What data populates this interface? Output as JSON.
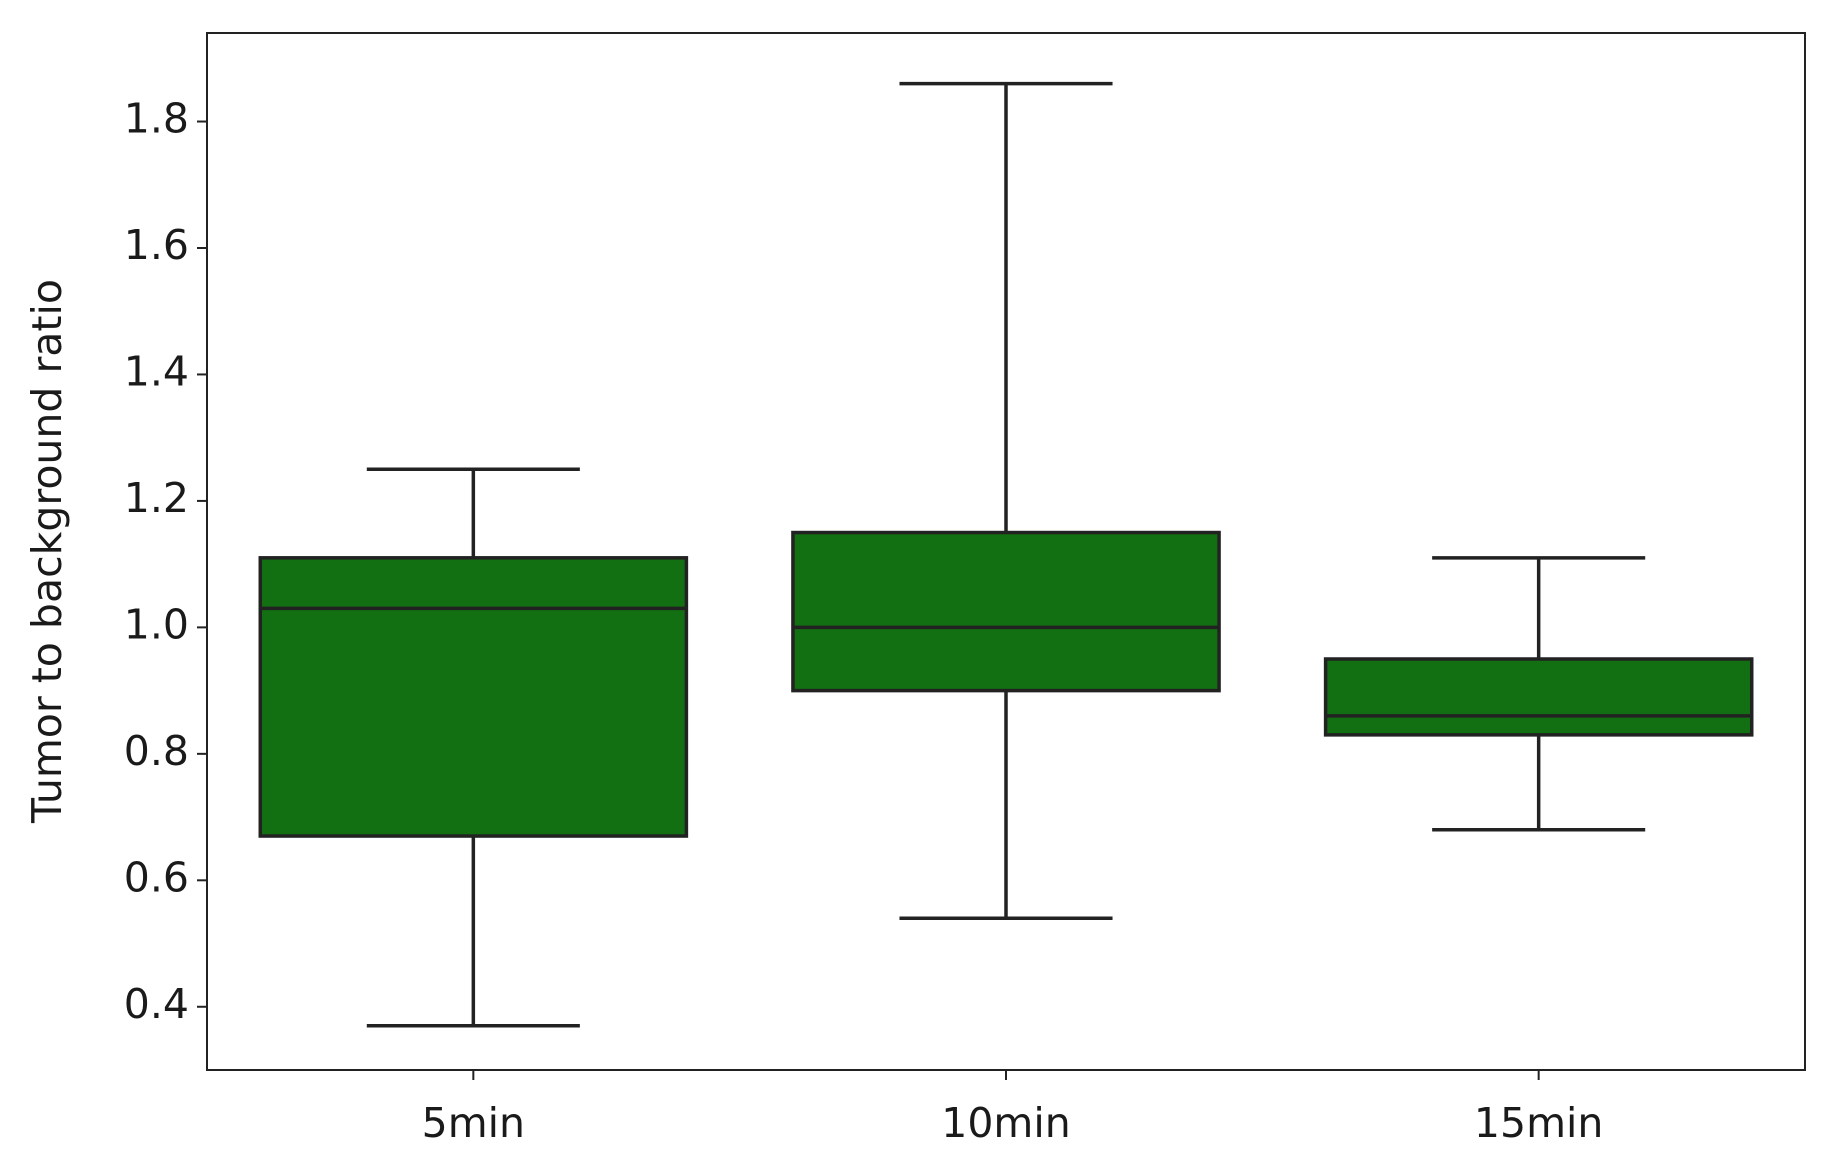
{
  "chart_data": {
    "type": "box",
    "y_label": "Tumor to background ratio",
    "categories": [
      "5min",
      "10min",
      "15min"
    ],
    "whisker_low": [
      0.37,
      0.54,
      0.68
    ],
    "q1": [
      0.67,
      0.9,
      0.83
    ],
    "median": [
      1.03,
      1.0,
      0.86
    ],
    "q3": [
      1.11,
      1.15,
      0.95
    ],
    "whisker_high": [
      1.25,
      1.86,
      1.11
    ],
    "color": "#137012",
    "edge_color": "#222222",
    "ylim": [
      0.3,
      1.94
    ],
    "yticks": [
      0.4,
      0.6,
      0.8,
      {
        "value": 1,
        "label": "1.0"
      },
      1.2,
      1.4,
      1.6,
      1.8
    ]
  }
}
